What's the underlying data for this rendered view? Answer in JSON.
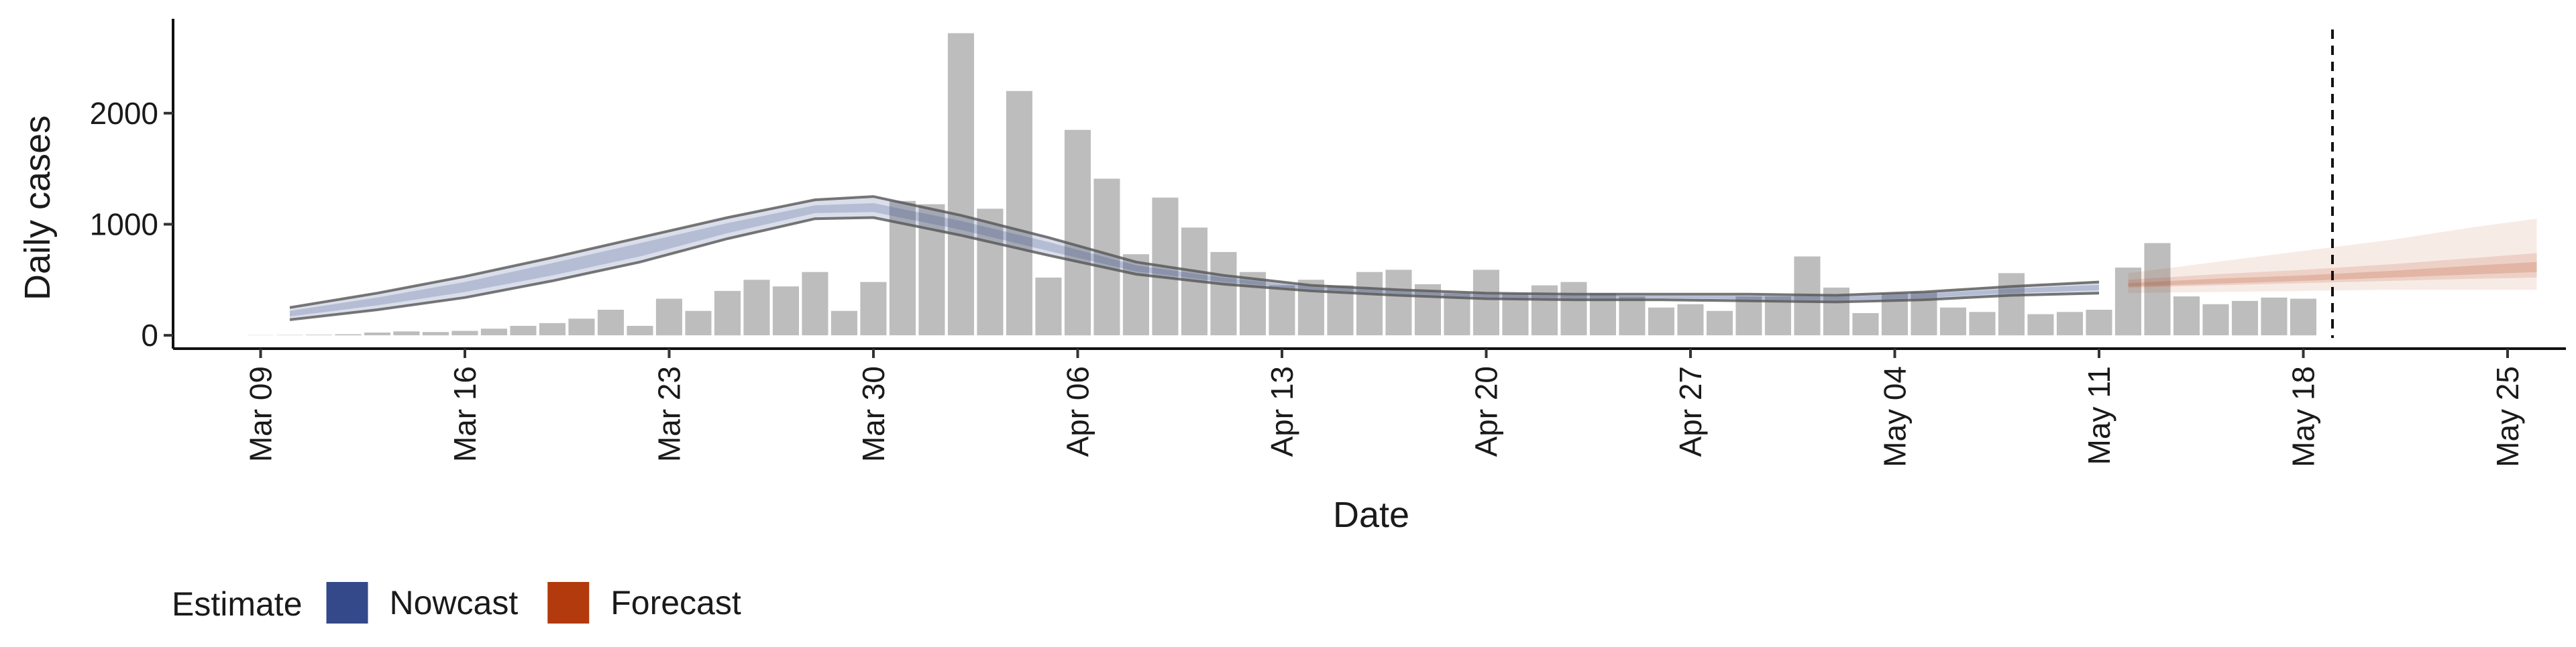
{
  "chart_data": {
    "type": "bar",
    "xlabel": "Date",
    "ylabel": "Daily cases",
    "x_range": [
      "2020-03-06",
      "2020-05-27"
    ],
    "ylim": [
      -120,
      2850
    ],
    "y_ticks": [
      0,
      1000,
      2000
    ],
    "x_ticks": [
      {
        "date": "2020-03-09",
        "label": "Mar 09"
      },
      {
        "date": "2020-03-16",
        "label": "Mar 16"
      },
      {
        "date": "2020-03-23",
        "label": "Mar 23"
      },
      {
        "date": "2020-03-30",
        "label": "Mar 30"
      },
      {
        "date": "2020-04-06",
        "label": "Apr 06"
      },
      {
        "date": "2020-04-13",
        "label": "Apr 13"
      },
      {
        "date": "2020-04-20",
        "label": "Apr 20"
      },
      {
        "date": "2020-04-27",
        "label": "Apr 27"
      },
      {
        "date": "2020-05-04",
        "label": "May 04"
      },
      {
        "date": "2020-05-11",
        "label": "May 11"
      },
      {
        "date": "2020-05-18",
        "label": "May 18"
      },
      {
        "date": "2020-05-25",
        "label": "May 25"
      }
    ],
    "grid": false,
    "vline_date": "2020-05-19",
    "legend": {
      "title": "Estimate",
      "position": "bottom-left",
      "entries": [
        {
          "label": "Nowcast",
          "color": "#33498a"
        },
        {
          "label": "Forecast",
          "color": "#b23a0c"
        }
      ]
    },
    "bar_color": "#bdbdbd",
    "reported_cases": {
      "start_date": "2020-03-09",
      "values": [
        2,
        3,
        5,
        10,
        25,
        35,
        30,
        40,
        60,
        85,
        110,
        150,
        230,
        85,
        330,
        220,
        400,
        500,
        440,
        570,
        220,
        480,
        1210,
        1180,
        2720,
        1140,
        2200,
        520,
        1850,
        1410,
        730,
        1240,
        970,
        750,
        570,
        450,
        500,
        450,
        570,
        590,
        460,
        380,
        590,
        380,
        450,
        480,
        380,
        350,
        250,
        280,
        220,
        350,
        350,
        710,
        430,
        200,
        380,
        390,
        250,
        210,
        560,
        190,
        210,
        230,
        610,
        830,
        350,
        280,
        310,
        340,
        330
      ]
    },
    "nowcast_bands": {
      "color": "#33498a",
      "dates": [
        "2020-03-10",
        "2020-03-13",
        "2020-03-16",
        "2020-03-19",
        "2020-03-22",
        "2020-03-25",
        "2020-03-28",
        "2020-03-30",
        "2020-04-02",
        "2020-04-05",
        "2020-04-08",
        "2020-04-11",
        "2020-04-14",
        "2020-04-17",
        "2020-04-20",
        "2020-04-23",
        "2020-04-26",
        "2020-04-29",
        "2020-05-02",
        "2020-05-05",
        "2020-05-08",
        "2020-05-11"
      ],
      "outer_upper": [
        250,
        380,
        530,
        700,
        880,
        1060,
        1220,
        1250,
        1080,
        880,
        660,
        540,
        450,
        410,
        380,
        370,
        370,
        370,
        360,
        390,
        440,
        480
      ],
      "outer_lower": [
        140,
        230,
        340,
        490,
        660,
        870,
        1050,
        1060,
        900,
        720,
        550,
        460,
        400,
        360,
        330,
        320,
        320,
        310,
        300,
        320,
        360,
        380
      ],
      "inner_upper": [
        220,
        340,
        480,
        650,
        830,
        1010,
        1170,
        1190,
        1030,
        840,
        630,
        520,
        435,
        395,
        365,
        355,
        355,
        355,
        345,
        375,
        420,
        455
      ],
      "inner_lower": [
        170,
        270,
        390,
        540,
        710,
        920,
        1100,
        1110,
        950,
        760,
        575,
        480,
        415,
        375,
        345,
        335,
        335,
        325,
        315,
        335,
        380,
        405
      ]
    },
    "forecast_bands": {
      "color": "#b23a0c",
      "dates": [
        "2020-05-12",
        "2020-05-15",
        "2020-05-18",
        "2020-05-21",
        "2020-05-24",
        "2020-05-26"
      ],
      "outer_upper": [
        560,
        660,
        760,
        860,
        980,
        1050
      ],
      "outer_lower": [
        380,
        390,
        400,
        410,
        410,
        410
      ],
      "inner_upper": [
        500,
        550,
        590,
        640,
        700,
        740
      ],
      "inner_lower": [
        430,
        450,
        470,
        490,
        510,
        520
      ],
      "mid_upper": [
        470,
        510,
        540,
        580,
        630,
        660
      ],
      "mid_lower": [
        440,
        465,
        490,
        520,
        550,
        570
      ]
    }
  }
}
